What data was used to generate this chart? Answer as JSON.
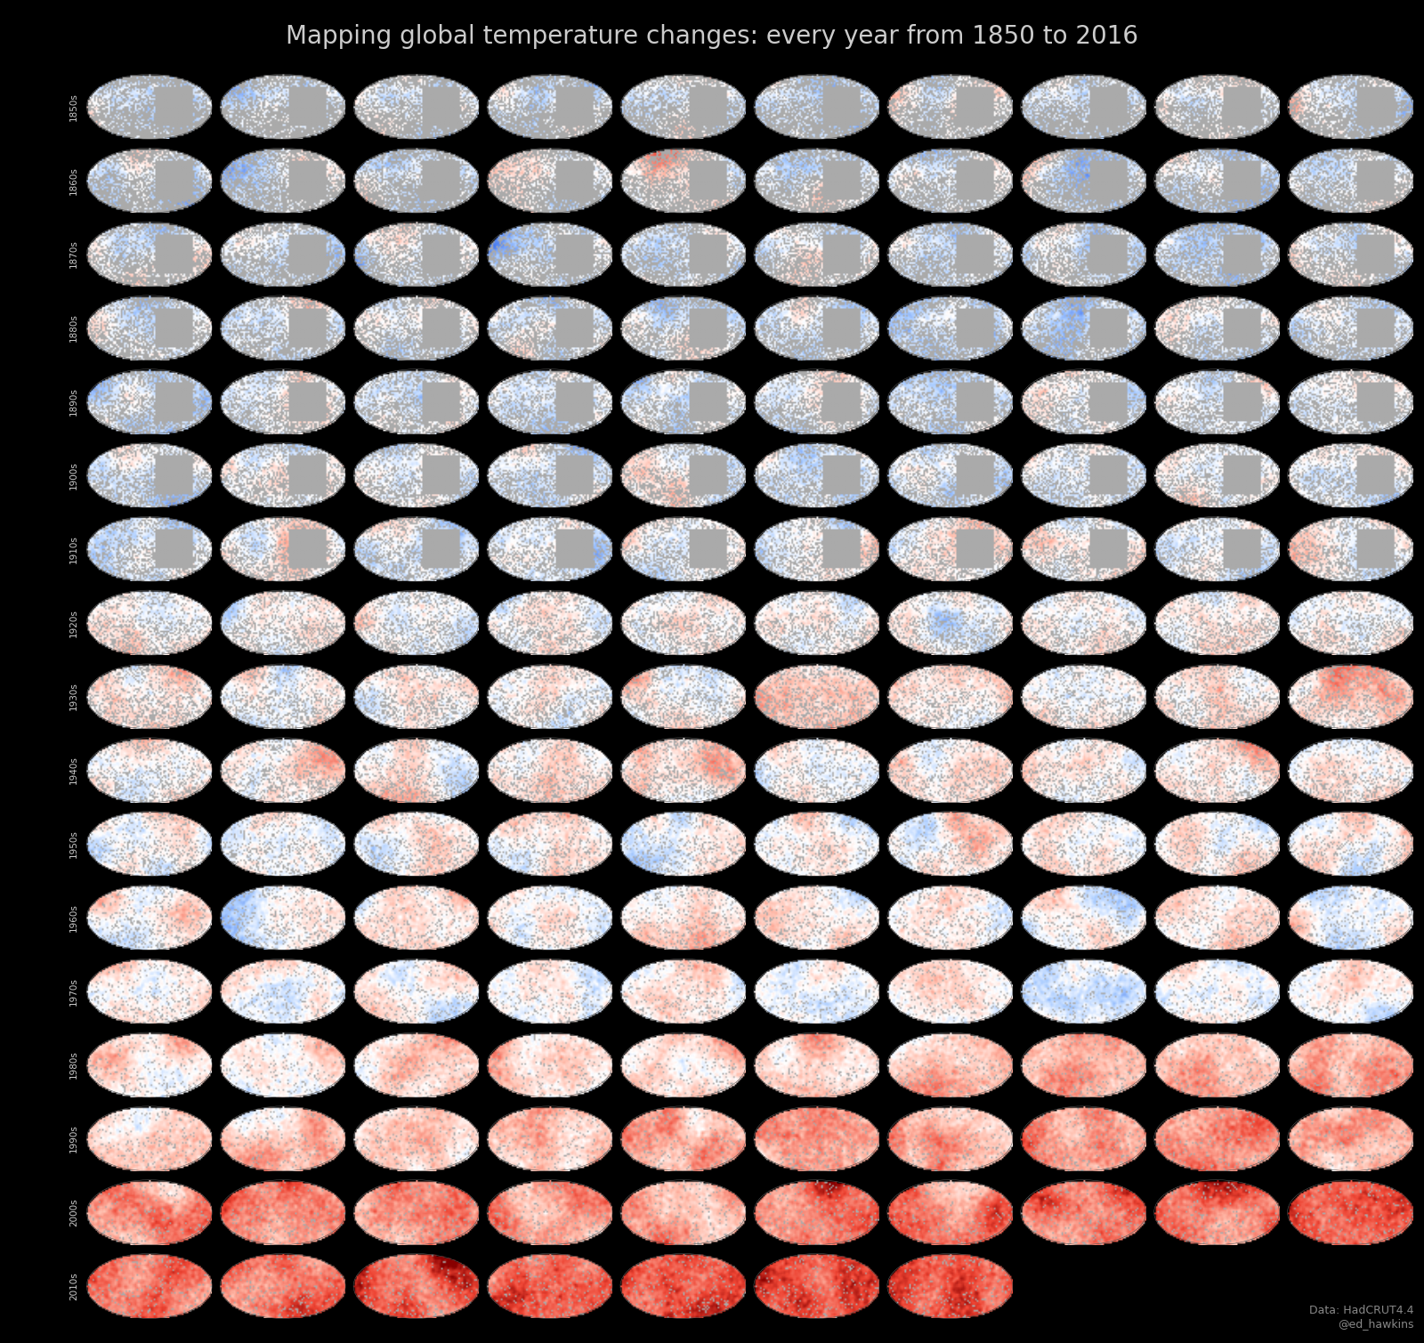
{
  "title": "Mapping global temperature changes: every year from 1850 to 2016",
  "title_color": "#cccccc",
  "title_fontsize": 20,
  "background_color": "#000000",
  "start_year": 1850,
  "end_year": 2016,
  "cols": 10,
  "decade_labels": [
    "1850s",
    "1860s",
    "1870s",
    "1880s",
    "1890s",
    "1900s",
    "1910s",
    "1920s",
    "1930s",
    "1940s",
    "1950s",
    "1960s",
    "1970s",
    "1980s",
    "1990s",
    "2000s",
    "2010s"
  ],
  "label_color": "#cccccc",
  "label_fontsize": 7.5,
  "map_bg_color": "#aaaaaa",
  "ocean_color": "#aaaaaa",
  "credit_text": "Data: HadCRUT4.4\n@ed_hawkins",
  "credit_color": "#888888",
  "credit_fontsize": 9,
  "vmin": -3.0,
  "vmax": 3.0,
  "cmap_colors": [
    [
      0.0,
      "#0033cc"
    ],
    [
      0.15,
      "#4477ee"
    ],
    [
      0.35,
      "#aaccff"
    ],
    [
      0.5,
      "#ffffff"
    ],
    [
      0.65,
      "#ffbbaa"
    ],
    [
      0.85,
      "#ee4433"
    ],
    [
      1.0,
      "#880000"
    ]
  ]
}
